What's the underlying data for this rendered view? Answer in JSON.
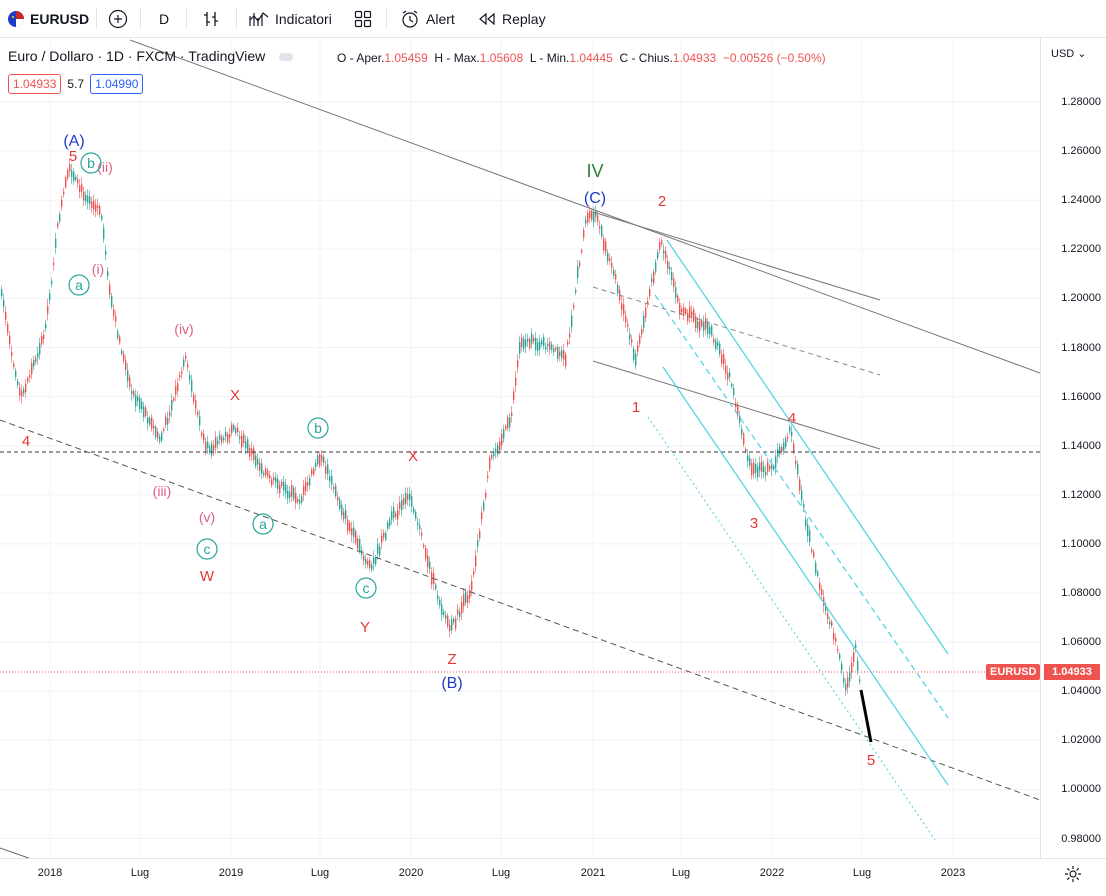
{
  "toolbar": {
    "symbol": "EURUSD",
    "interval": "D",
    "indicators_label": "Indicatori",
    "alert_label": "Alert",
    "replay_label": "Replay"
  },
  "legend": {
    "title": "Euro / Dollaro · 1D · FXCM · TradingView",
    "open_label": "O - Aper.",
    "open": "1.05459",
    "high_label": "H - Max.",
    "high": "1.05608",
    "low_label": "L - Min.",
    "low": "1.04445",
    "close_label": "C - Chius.",
    "close": "1.04933",
    "change": "−0.00526 (−0.50%)"
  },
  "badges": {
    "sell": "1.04933",
    "spread": "5.7",
    "buy": "1.04990"
  },
  "price_axis": {
    "currency": "USD",
    "labels": [
      "1.28000",
      "1.26000",
      "1.24000",
      "1.22000",
      "1.20000",
      "1.18000",
      "1.16000",
      "1.14000",
      "1.12000",
      "1.10000",
      "1.08000",
      "1.06000",
      "1.04000",
      "1.02000",
      "1.00000",
      "0.98000"
    ],
    "symbol_tag": "EURUSD",
    "price_tag": "1.04933"
  },
  "time_axis": {
    "labels": [
      "2018",
      "Lug",
      "2019",
      "Lug",
      "2020",
      "Lug",
      "2021",
      "Lug",
      "2022",
      "Lug",
      "2023"
    ]
  },
  "wave_labels": {
    "A": "(A)",
    "B": "(B)",
    "C": "(C)",
    "IV": "IV",
    "n1": "1",
    "n2": "2",
    "n3": "3",
    "n4": "4",
    "n5": "5",
    "n4_left": "4",
    "n5_top": "5",
    "X1": "X",
    "X2": "X",
    "W": "W",
    "Y": "Y",
    "Z": "Z",
    "i": "(i)",
    "ii": "(ii)",
    "iii": "(iii)",
    "iv": "(iv)",
    "v": "(v)",
    "a1": "a",
    "b1": "b",
    "a2": "a",
    "b2": "b",
    "c1": "c",
    "c2": "c"
  },
  "colors": {
    "up": "#26a69a",
    "down": "#ef5350",
    "red_label": "#e53935",
    "blue_label": "#1e3bc6",
    "green_label": "#2e7d32",
    "pink_label": "#e06080",
    "teal_label": "#26a69a",
    "channel": "#4dd0e1"
  }
}
